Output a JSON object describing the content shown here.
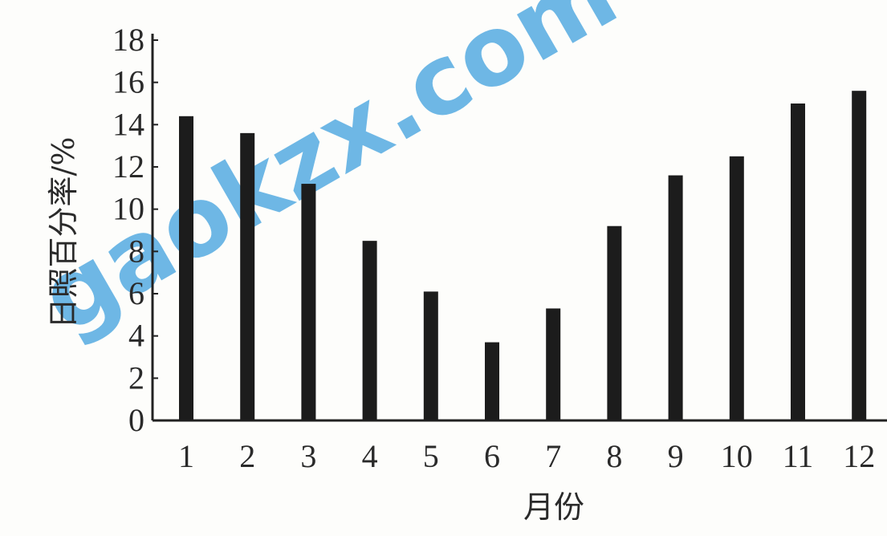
{
  "chart_data": {
    "type": "bar",
    "categories": [
      "1",
      "2",
      "3",
      "4",
      "5",
      "6",
      "7",
      "8",
      "9",
      "10",
      "11",
      "12"
    ],
    "values": [
      14.4,
      13.6,
      11.2,
      8.5,
      6.1,
      3.7,
      5.3,
      9.2,
      11.6,
      12.5,
      15.0,
      15.6
    ],
    "title": "",
    "xlabel": "月份",
    "ylabel": "日照百分率/%",
    "ylim": [
      0,
      18
    ],
    "yticks": [
      "0",
      "2",
      "4",
      "6",
      "8",
      "10",
      "12",
      "14",
      "16",
      "18"
    ],
    "grid": false,
    "legend": "none",
    "bar_color": "#1c1c1c"
  },
  "watermark": {
    "text": "gaokzx.com",
    "color": "#5fb0e3"
  }
}
